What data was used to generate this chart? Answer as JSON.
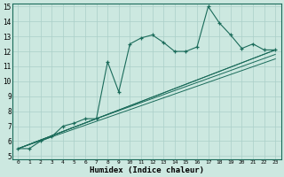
{
  "title": "",
  "xlabel": "Humidex (Indice chaleur)",
  "xlim": [
    -0.5,
    23.5
  ],
  "ylim": [
    4.8,
    15.2
  ],
  "xticks": [
    0,
    1,
    2,
    3,
    4,
    5,
    6,
    7,
    8,
    9,
    10,
    11,
    12,
    13,
    14,
    15,
    16,
    17,
    18,
    19,
    20,
    21,
    22,
    23
  ],
  "yticks": [
    5,
    6,
    7,
    8,
    9,
    10,
    11,
    12,
    13,
    14,
    15
  ],
  "bg_color": "#cce8e0",
  "grid_color": "#aacfc8",
  "line_color": "#1a6b5a",
  "line1": {
    "x": [
      0,
      1,
      2,
      3,
      4,
      5,
      6,
      7,
      8,
      9,
      10,
      11,
      12,
      13,
      14,
      15,
      16,
      17,
      18,
      19,
      20,
      21,
      22,
      23
    ],
    "y": [
      5.5,
      5.5,
      6.0,
      6.3,
      7.0,
      7.2,
      7.5,
      7.5,
      11.3,
      9.3,
      12.5,
      12.9,
      13.1,
      12.6,
      12.0,
      12.0,
      12.3,
      15.0,
      13.9,
      13.1,
      12.2,
      12.5,
      12.1,
      12.1
    ]
  },
  "line2": {
    "x": [
      0,
      23
    ],
    "y": [
      5.5,
      12.1
    ]
  },
  "line3": {
    "x": [
      0,
      23
    ],
    "y": [
      5.5,
      11.5
    ]
  },
  "line4": {
    "x": [
      0,
      7,
      23
    ],
    "y": [
      5.5,
      7.5,
      12.1
    ]
  },
  "line5": {
    "x": [
      0,
      7,
      23
    ],
    "y": [
      5.5,
      7.5,
      11.8
    ]
  }
}
